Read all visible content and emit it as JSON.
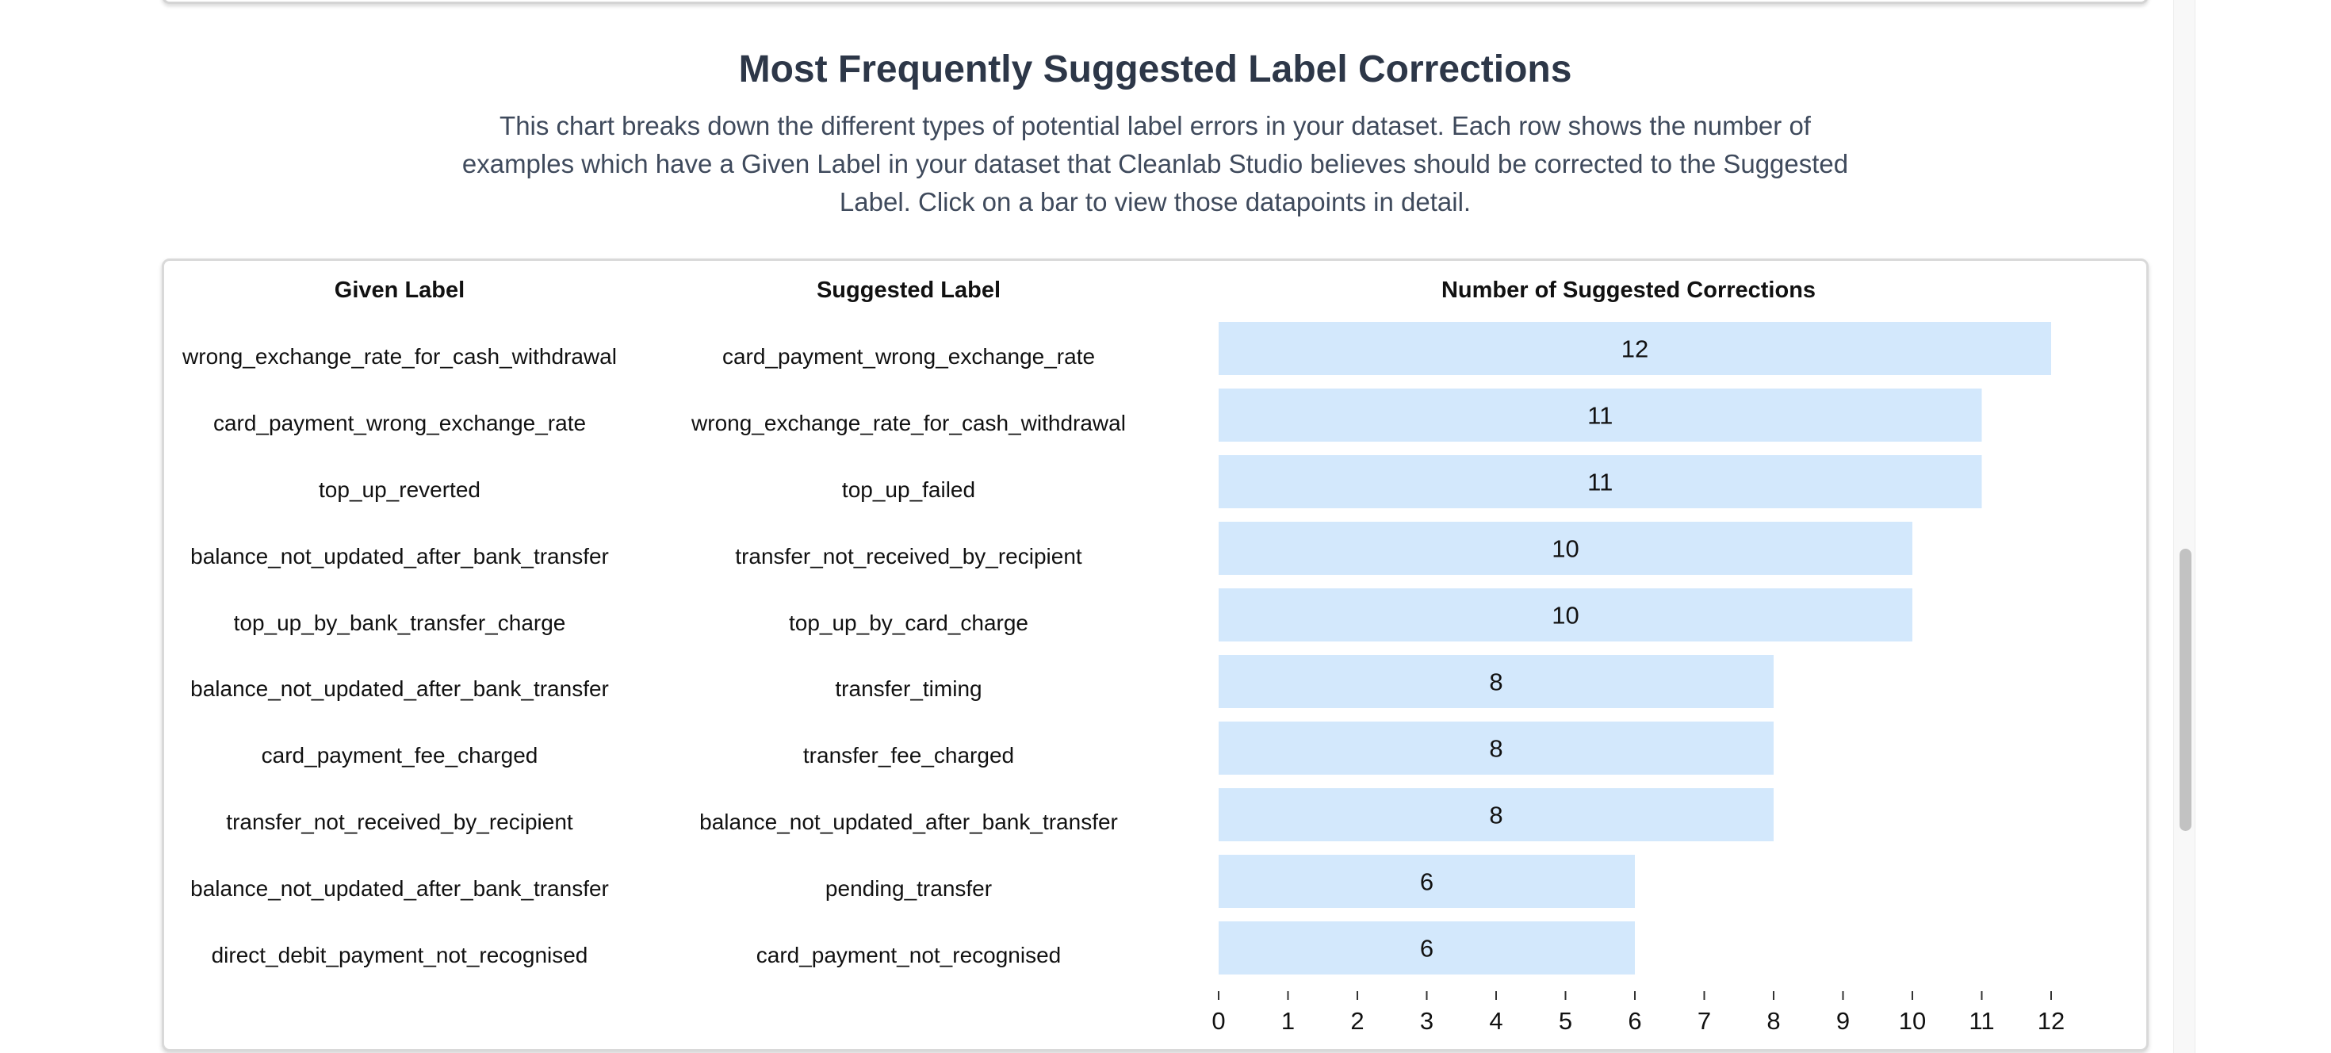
{
  "section": {
    "title": "Most Frequently Suggested Label Corrections",
    "description": "This chart breaks down the different types of potential label errors in your dataset. Each row shows the number of examples which have a Given Label in your dataset that Cleanlab Studio believes should be corrected to the Suggested Label. Click on a bar to view those datapoints in detail."
  },
  "table": {
    "headers": {
      "given": "Given Label",
      "suggested": "Suggested Label",
      "count": "Number of Suggested Corrections"
    },
    "rows": [
      {
        "given": "wrong_exchange_rate_for_cash_withdrawal",
        "suggested": "card_payment_wrong_exchange_rate"
      },
      {
        "given": "card_payment_wrong_exchange_rate",
        "suggested": "wrong_exchange_rate_for_cash_withdrawal"
      },
      {
        "given": "top_up_reverted",
        "suggested": "top_up_failed"
      },
      {
        "given": "balance_not_updated_after_bank_transfer",
        "suggested": "transfer_not_received_by_recipient"
      },
      {
        "given": "top_up_by_bank_transfer_charge",
        "suggested": "top_up_by_card_charge"
      },
      {
        "given": "balance_not_updated_after_bank_transfer",
        "suggested": "transfer_timing"
      },
      {
        "given": "card_payment_fee_charged",
        "suggested": "transfer_fee_charged"
      },
      {
        "given": "transfer_not_received_by_recipient",
        "suggested": "balance_not_updated_after_bank_transfer"
      },
      {
        "given": "balance_not_updated_after_bank_transfer",
        "suggested": "pending_transfer"
      },
      {
        "given": "direct_debit_payment_not_recognised",
        "suggested": "card_payment_not_recognised"
      }
    ]
  },
  "colors": {
    "bar": "#d3e8fc",
    "axis": "#333333",
    "text": "#111111"
  },
  "chart_data": {
    "type": "bar",
    "orientation": "horizontal",
    "title": "Number of Suggested Corrections",
    "categories": [
      "wrong_exchange_rate_for_cash_withdrawal → card_payment_wrong_exchange_rate",
      "card_payment_wrong_exchange_rate → wrong_exchange_rate_for_cash_withdrawal",
      "top_up_reverted → top_up_failed",
      "balance_not_updated_after_bank_transfer → transfer_not_received_by_recipient",
      "top_up_by_bank_transfer_charge → top_up_by_card_charge",
      "balance_not_updated_after_bank_transfer → transfer_timing",
      "card_payment_fee_charged → transfer_fee_charged",
      "transfer_not_received_by_recipient → balance_not_updated_after_bank_transfer",
      "balance_not_updated_after_bank_transfer → pending_transfer",
      "direct_debit_payment_not_recognised → card_payment_not_recognised"
    ],
    "values": [
      12,
      11,
      11,
      10,
      10,
      8,
      8,
      8,
      6,
      6
    ],
    "xlim": [
      0,
      12
    ],
    "xticks": [
      0,
      1,
      2,
      3,
      4,
      5,
      6,
      7,
      8,
      9,
      10,
      11,
      12
    ],
    "grid": false,
    "data_labels": true
  }
}
